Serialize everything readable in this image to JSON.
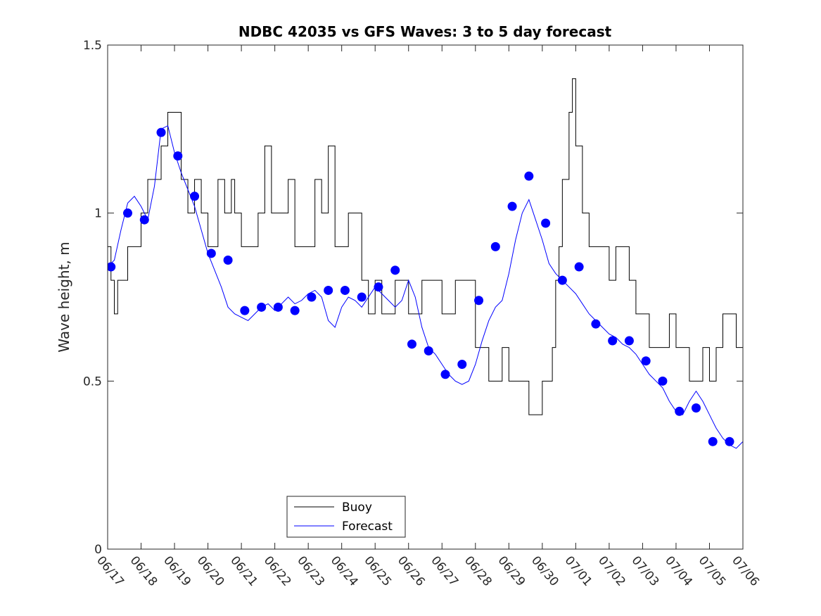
{
  "chart_data": {
    "type": "line",
    "title": "NDBC 42035 vs GFS Waves: 3 to 5 day forecast",
    "xlabel": "",
    "ylabel": "Wave height, m",
    "xlim": [
      "06/17",
      "07/06"
    ],
    "ylim": [
      0,
      1.5
    ],
    "x_tick_labels": [
      "06/17",
      "06/18",
      "06/19",
      "06/20",
      "06/21",
      "06/22",
      "06/23",
      "06/24",
      "06/25",
      "06/26",
      "06/27",
      "06/28",
      "06/29",
      "06/30",
      "07/01",
      "07/02",
      "07/03",
      "07/04",
      "07/05",
      "07/06"
    ],
    "y_ticks": [
      0,
      0.5,
      1,
      1.5
    ],
    "y_tick_labels": [
      "0",
      "0.5",
      "1",
      "1.5"
    ],
    "grid": false,
    "legend_position": "bottom-center",
    "colors": {
      "buoy": "#000000",
      "forecast": "#0000ff",
      "markers": "#0000ff"
    },
    "series": [
      {
        "name": "Buoy",
        "style": "line",
        "x": [
          0,
          0.1,
          0.2,
          0.3,
          0.5,
          0.6,
          0.8,
          1.0,
          1.2,
          1.4,
          1.6,
          1.8,
          1.9,
          2.0,
          2.2,
          2.4,
          2.6,
          2.8,
          3.0,
          3.2,
          3.3,
          3.5,
          3.7,
          3.8,
          4.0,
          4.3,
          4.5,
          4.7,
          4.9,
          5.0,
          5.2,
          5.4,
          5.6,
          5.8,
          6.0,
          6.2,
          6.4,
          6.6,
          6.8,
          7.0,
          7.2,
          7.4,
          7.6,
          7.8,
          8.0,
          8.2,
          8.4,
          8.6,
          8.8,
          9.0,
          9.2,
          9.4,
          9.6,
          9.8,
          10.0,
          10.2,
          10.4,
          10.6,
          10.8,
          11.0,
          11.2,
          11.4,
          11.6,
          11.8,
          12.0,
          12.2,
          12.4,
          12.6,
          12.8,
          13.0,
          13.2,
          13.3,
          13.4,
          13.5,
          13.6,
          13.8,
          13.9,
          14.0,
          14.2,
          14.4,
          14.6,
          14.8,
          15.0,
          15.2,
          15.4,
          15.6,
          15.8,
          16.0,
          16.2,
          16.4,
          16.6,
          16.8,
          17.0,
          17.2,
          17.4,
          17.6,
          17.8,
          18.0,
          18.2,
          18.4,
          18.6,
          18.8,
          19.0
        ],
        "y": [
          0.9,
          0.8,
          0.7,
          0.8,
          0.8,
          0.9,
          0.9,
          1.0,
          1.1,
          1.1,
          1.2,
          1.3,
          1.3,
          1.3,
          1.1,
          1.0,
          1.1,
          1.0,
          0.9,
          0.9,
          1.1,
          1.0,
          1.1,
          1.0,
          0.9,
          0.9,
          1.0,
          1.2,
          1.0,
          1.0,
          1.0,
          1.1,
          0.9,
          0.9,
          0.9,
          1.1,
          1.0,
          1.2,
          0.9,
          0.9,
          1.0,
          1.0,
          0.8,
          0.7,
          0.8,
          0.7,
          0.7,
          0.8,
          0.8,
          0.7,
          0.7,
          0.8,
          0.8,
          0.8,
          0.7,
          0.7,
          0.8,
          0.8,
          0.8,
          0.6,
          0.6,
          0.5,
          0.5,
          0.6,
          0.5,
          0.5,
          0.5,
          0.4,
          0.4,
          0.5,
          0.5,
          0.6,
          0.8,
          0.9,
          1.1,
          1.3,
          1.4,
          1.2,
          1.0,
          0.9,
          0.9,
          0.9,
          0.8,
          0.9,
          0.9,
          0.8,
          0.7,
          0.7,
          0.6,
          0.6,
          0.6,
          0.7,
          0.6,
          0.6,
          0.5,
          0.5,
          0.6,
          0.5,
          0.6,
          0.7,
          0.7,
          0.6,
          0.7
        ]
      },
      {
        "name": "Forecast",
        "style": "line",
        "x": [
          0,
          0.2,
          0.4,
          0.6,
          0.8,
          1.0,
          1.2,
          1.4,
          1.6,
          1.8,
          2.0,
          2.2,
          2.4,
          2.6,
          2.8,
          3.0,
          3.2,
          3.4,
          3.6,
          3.8,
          4.0,
          4.2,
          4.4,
          4.6,
          4.8,
          5.0,
          5.2,
          5.4,
          5.6,
          5.8,
          6.0,
          6.2,
          6.4,
          6.6,
          6.8,
          7.0,
          7.2,
          7.4,
          7.6,
          7.8,
          8.0,
          8.2,
          8.4,
          8.6,
          8.8,
          9.0,
          9.2,
          9.4,
          9.6,
          9.8,
          10.0,
          10.2,
          10.4,
          10.6,
          10.8,
          11.0,
          11.2,
          11.4,
          11.6,
          11.8,
          12.0,
          12.2,
          12.4,
          12.6,
          12.8,
          13.0,
          13.2,
          13.4,
          13.6,
          13.8,
          14.0,
          14.2,
          14.4,
          14.6,
          14.8,
          15.0,
          15.2,
          15.4,
          15.6,
          15.8,
          16.0,
          16.2,
          16.4,
          16.6,
          16.8,
          17.0,
          17.2,
          17.4,
          17.6,
          17.8,
          18.0,
          18.2,
          18.4,
          18.6,
          18.8,
          19.0
        ],
        "y": [
          0.84,
          0.86,
          0.95,
          1.03,
          1.05,
          1.02,
          0.98,
          1.08,
          1.25,
          1.26,
          1.18,
          1.12,
          1.07,
          1.02,
          0.95,
          0.88,
          0.83,
          0.78,
          0.72,
          0.7,
          0.69,
          0.68,
          0.7,
          0.72,
          0.73,
          0.71,
          0.73,
          0.75,
          0.73,
          0.74,
          0.76,
          0.77,
          0.75,
          0.68,
          0.66,
          0.72,
          0.75,
          0.74,
          0.72,
          0.75,
          0.78,
          0.76,
          0.74,
          0.72,
          0.74,
          0.8,
          0.75,
          0.66,
          0.6,
          0.58,
          0.55,
          0.52,
          0.5,
          0.49,
          0.5,
          0.55,
          0.62,
          0.68,
          0.72,
          0.74,
          0.82,
          0.92,
          1.0,
          1.04,
          0.98,
          0.92,
          0.85,
          0.82,
          0.8,
          0.78,
          0.76,
          0.73,
          0.7,
          0.68,
          0.66,
          0.64,
          0.63,
          0.61,
          0.6,
          0.58,
          0.55,
          0.52,
          0.5,
          0.48,
          0.44,
          0.41,
          0.4,
          0.44,
          0.47,
          0.44,
          0.4,
          0.36,
          0.33,
          0.31,
          0.3,
          0.32
        ]
      },
      {
        "name": "",
        "style": "markers",
        "x": [
          0.1,
          0.6,
          1.1,
          1.6,
          2.1,
          2.6,
          3.1,
          3.6,
          4.1,
          4.6,
          5.1,
          5.6,
          6.1,
          6.6,
          7.1,
          7.6,
          8.1,
          8.6,
          9.1,
          9.6,
          10.1,
          10.6,
          11.1,
          11.6,
          12.1,
          12.6,
          13.1,
          13.6,
          14.1,
          14.6,
          15.1,
          15.6,
          16.1,
          16.6,
          17.1,
          17.6,
          18.1,
          18.6
        ],
        "y": [
          0.84,
          1.0,
          0.98,
          1.24,
          1.17,
          1.05,
          0.88,
          0.86,
          0.71,
          0.72,
          0.72,
          0.71,
          0.75,
          0.77,
          0.77,
          0.75,
          0.78,
          0.83,
          0.61,
          0.59,
          0.52,
          0.55,
          0.74,
          0.9,
          1.02,
          1.11,
          0.97,
          0.8,
          0.84,
          0.67,
          0.62,
          0.62,
          0.56,
          0.5,
          0.41,
          0.42,
          0.32,
          0.32
        ]
      }
    ]
  }
}
